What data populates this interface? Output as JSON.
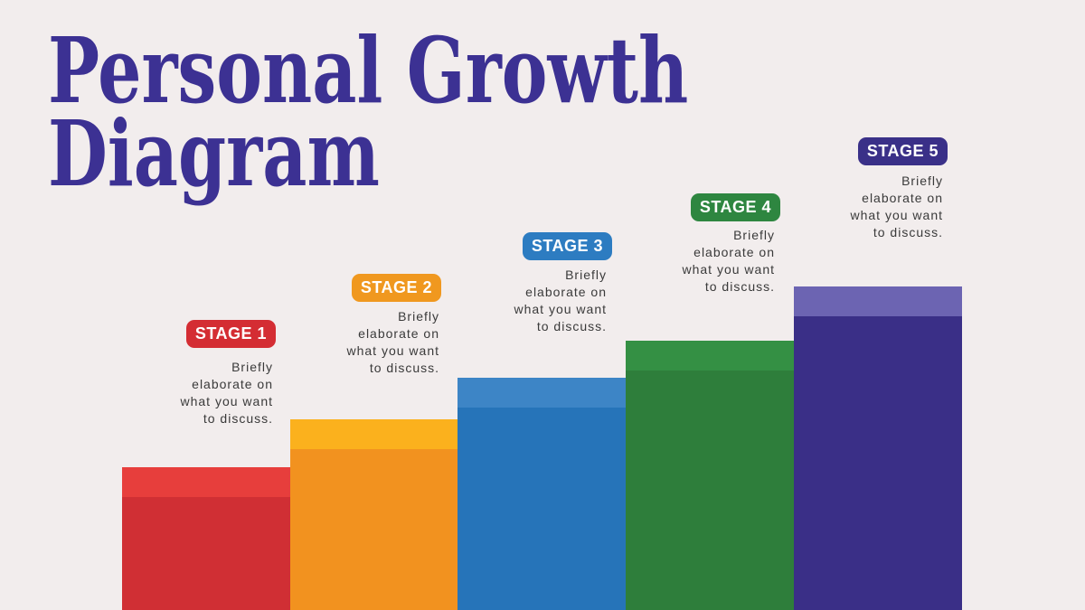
{
  "title": "Personal Growth\nDiagram",
  "colors": {
    "background": "#f2eded",
    "title": "#3c3193",
    "body_text": "#3a3a3a"
  },
  "stages": [
    {
      "label": "STAGE 1",
      "description": "Briefly\nelaborate on\nwhat you want\nto discuss.",
      "badge_color": "#d42d33",
      "cap_color": "#e73e3c",
      "bar_color": "#d02f34"
    },
    {
      "label": "STAGE 2",
      "description": "Briefly\nelaborate on\nwhat you want\nto discuss.",
      "badge_color": "#f0981f",
      "cap_color": "#fbb11d",
      "bar_color": "#f2921f"
    },
    {
      "label": "STAGE 3",
      "description": "Briefly\nelaborate on\nwhat you want\nto discuss.",
      "badge_color": "#2d7cc1",
      "cap_color": "#3d85c6",
      "bar_color": "#2674b9"
    },
    {
      "label": "STAGE 4",
      "description": "Briefly\nelaborate on\nwhat you want\nto discuss.",
      "badge_color": "#2e8640",
      "cap_color": "#349044",
      "bar_color": "#2e7e3b"
    },
    {
      "label": "STAGE 5",
      "description": "Briefly\nelaborate on\nwhat you want\nto discuss.",
      "badge_color": "#3a3088",
      "cap_color": "#6c64b2",
      "bar_color": "#3a2f87"
    }
  ]
}
